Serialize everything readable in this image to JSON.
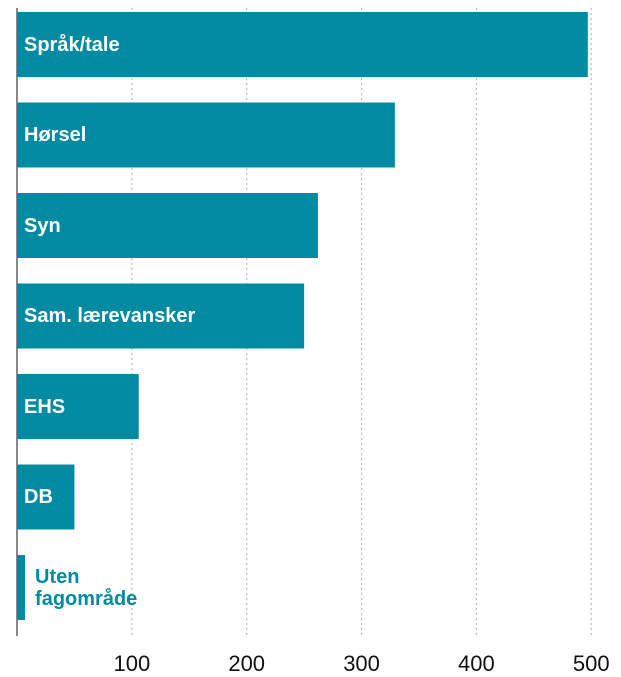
{
  "chart_data": {
    "type": "hbar",
    "categories": [
      "Språk/tale",
      "Hørsel",
      "Syn",
      "Sam. lærevansker",
      "EHS",
      "DB",
      "Uten fagområde"
    ],
    "values": [
      497,
      329,
      262,
      250,
      106,
      50,
      7
    ],
    "color": "#008ba3",
    "xlim": [
      0,
      505
    ],
    "xticks": [
      100,
      200,
      300,
      400,
      500
    ],
    "grid": true
  }
}
